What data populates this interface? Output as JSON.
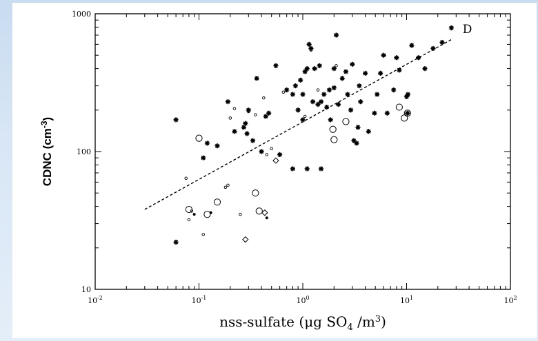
{
  "chart_data": {
    "type": "scatter",
    "title": "",
    "xlabel": "nss-sulfate (μg SO₄/m³)",
    "ylabel": "CDNC (cm⁻³)",
    "xscale": "log",
    "yscale": "log",
    "xlim": [
      0.01,
      100
    ],
    "ylim": [
      10,
      1000
    ],
    "x_ticks": [
      {
        "value": 0.01,
        "base": "10",
        "exp": "-2"
      },
      {
        "value": 0.1,
        "base": "10",
        "exp": "-1"
      },
      {
        "value": 1,
        "base": "10",
        "exp": "0"
      },
      {
        "value": 10,
        "base": "10",
        "exp": "1"
      },
      {
        "value": 100,
        "base": "10",
        "exp": "2"
      }
    ],
    "y_ticks": [
      {
        "value": 10,
        "label": "10"
      },
      {
        "value": 100,
        "label": "100"
      },
      {
        "value": 1000,
        "label": "1000"
      }
    ],
    "grid": false,
    "fit_line": {
      "label": "D",
      "style": "dashed",
      "x": [
        0.03,
        28
      ],
      "y": [
        38,
        660
      ]
    },
    "series": [
      {
        "marker": "asterisk",
        "points": [
          [
            0.06,
            170
          ],
          [
            0.11,
            90
          ],
          [
            0.12,
            115
          ],
          [
            0.15,
            110
          ],
          [
            0.19,
            230
          ],
          [
            0.22,
            140
          ],
          [
            0.28,
            160
          ],
          [
            0.3,
            200
          ],
          [
            0.27,
            150
          ],
          [
            0.29,
            135
          ],
          [
            0.36,
            340
          ],
          [
            0.4,
            100
          ],
          [
            0.44,
            180
          ],
          [
            0.47,
            190
          ],
          [
            0.55,
            420
          ],
          [
            0.6,
            95
          ],
          [
            0.7,
            280
          ],
          [
            0.8,
            260
          ],
          [
            0.8,
            75
          ],
          [
            0.85,
            300
          ],
          [
            0.9,
            200
          ],
          [
            0.95,
            330
          ],
          [
            1.0,
            170
          ],
          [
            1.0,
            260
          ],
          [
            1.05,
            380
          ],
          [
            1.1,
            400
          ],
          [
            1.15,
            600
          ],
          [
            1.2,
            560
          ],
          [
            1.1,
            75
          ],
          [
            1.25,
            230
          ],
          [
            1.3,
            400
          ],
          [
            1.4,
            220
          ],
          [
            1.45,
            420
          ],
          [
            1.5,
            75
          ],
          [
            1.6,
            260
          ],
          [
            1.5,
            230
          ],
          [
            1.7,
            210
          ],
          [
            1.8,
            280
          ],
          [
            1.85,
            170
          ],
          [
            2.0,
            400
          ],
          [
            2.0,
            290
          ],
          [
            2.1,
            700
          ],
          [
            2.2,
            220
          ],
          [
            2.4,
            340
          ],
          [
            2.6,
            380
          ],
          [
            2.7,
            260
          ],
          [
            2.9,
            200
          ],
          [
            3.0,
            430
          ],
          [
            3.1,
            120
          ],
          [
            3.3,
            115
          ],
          [
            3.4,
            150
          ],
          [
            3.6,
            230
          ],
          [
            3.5,
            300
          ],
          [
            4.0,
            370
          ],
          [
            4.3,
            140
          ],
          [
            4.9,
            190
          ],
          [
            5.2,
            260
          ],
          [
            5.6,
            370
          ],
          [
            6.0,
            500
          ],
          [
            6.5,
            190
          ],
          [
            7.5,
            280
          ],
          [
            8.0,
            480
          ],
          [
            8.5,
            390
          ],
          [
            10.0,
            250
          ],
          [
            10.3,
            260
          ],
          [
            10.2,
            190
          ],
          [
            11.2,
            590
          ],
          [
            13.0,
            480
          ],
          [
            15.0,
            400
          ],
          [
            18.0,
            560
          ],
          [
            22.0,
            620
          ],
          [
            27.0,
            790
          ],
          [
            0.06,
            22
          ],
          [
            0.33,
            120
          ]
        ]
      },
      {
        "marker": "small-open-circle",
        "points": [
          [
            0.075,
            64
          ],
          [
            0.08,
            32
          ],
          [
            0.085,
            37
          ],
          [
            0.11,
            25
          ],
          [
            0.18,
            55
          ],
          [
            0.19,
            57
          ],
          [
            0.25,
            35
          ],
          [
            0.2,
            175
          ],
          [
            0.3,
            195
          ],
          [
            0.35,
            185
          ],
          [
            0.42,
            245
          ],
          [
            0.5,
            105
          ],
          [
            0.65,
            270
          ],
          [
            1.05,
            180
          ],
          [
            1.2,
            545
          ],
          [
            1.4,
            280
          ],
          [
            2.1,
            420
          ],
          [
            0.45,
            95
          ],
          [
            0.22,
            205
          ]
        ]
      },
      {
        "marker": "large-open-circle",
        "points": [
          [
            0.08,
            38
          ],
          [
            0.1,
            125
          ],
          [
            0.12,
            35
          ],
          [
            0.15,
            43
          ],
          [
            0.35,
            50
          ],
          [
            0.38,
            37
          ],
          [
            1.95,
            145
          ],
          [
            2.0,
            122
          ],
          [
            2.6,
            165
          ],
          [
            8.5,
            210
          ],
          [
            9.5,
            175
          ],
          [
            10.2,
            190
          ]
        ]
      },
      {
        "marker": "diamond",
        "points": [
          [
            0.28,
            23
          ],
          [
            0.43,
            36
          ],
          [
            0.55,
            86
          ]
        ]
      },
      {
        "marker": "filled-dot",
        "points": [
          [
            0.13,
            36
          ],
          [
            0.45,
            33
          ],
          [
            0.09,
            35
          ]
        ]
      }
    ]
  }
}
